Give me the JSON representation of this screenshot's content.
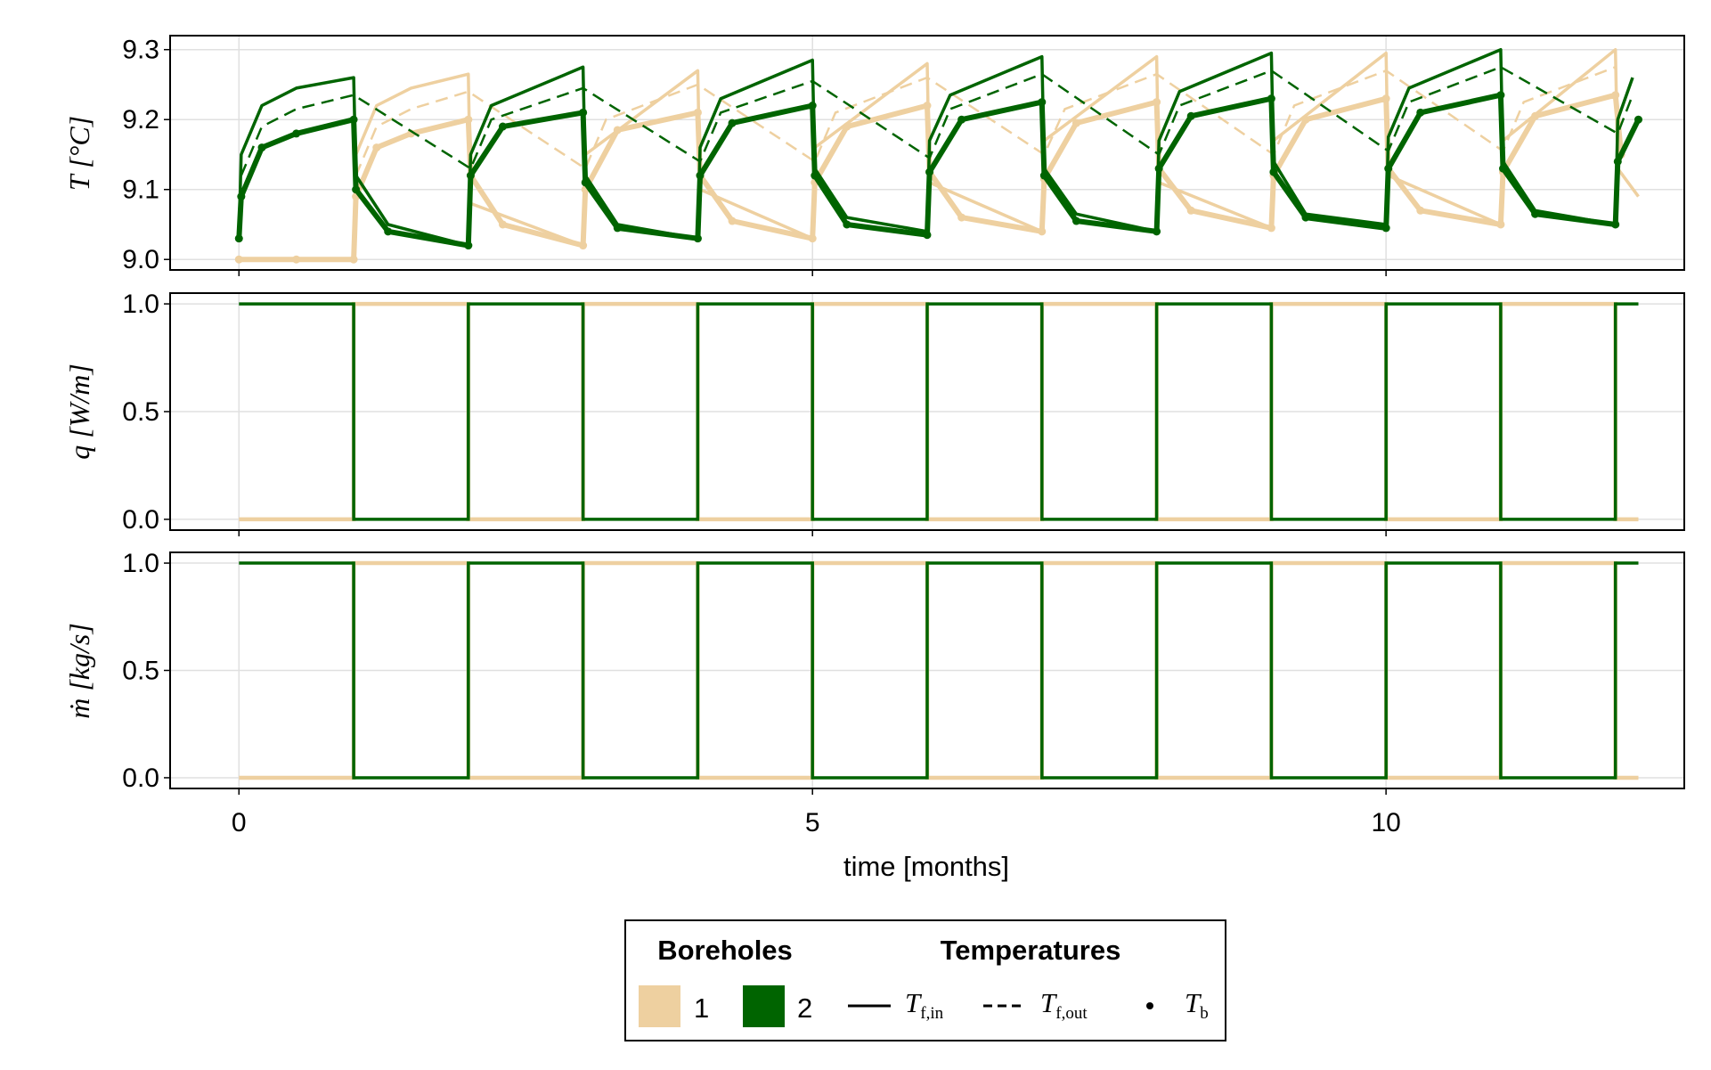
{
  "colors": {
    "borehole1": "#eed0a0",
    "borehole2": "#006400",
    "grid": "#e0e0e0",
    "axis": "#000000"
  },
  "chart_data": {
    "type": "line",
    "xlabel": "time [months]",
    "x_ticks": [
      "0",
      "5",
      "10"
    ],
    "xlim": [
      -0.6,
      12.6
    ],
    "panels": [
      {
        "id": "temperature",
        "ylabel": "T [°C]",
        "ylim": [
          8.985,
          9.32
        ],
        "y_ticks": [
          "9.0",
          "9.1",
          "9.2",
          "9.3"
        ],
        "y_tick_values": [
          9.0,
          9.1,
          9.2,
          9.3
        ],
        "series": [
          {
            "name": "T_f,in",
            "borehole": "1",
            "style": "solid",
            "x": [
              0,
              1,
              1.02,
              1.2,
              1.5,
              2.0,
              2.02,
              3.0,
              3.02,
              4.0,
              4.02,
              5.0,
              5.02,
              6.0,
              6.02,
              7.0,
              7.02,
              8.0,
              8.02,
              9.0,
              9.02,
              10.0,
              10.02,
              11.0,
              11.02,
              12.0,
              12.02,
              12.2
            ],
            "y": [
              9.0,
              9.0,
              9.15,
              9.22,
              9.245,
              9.265,
              9.08,
              9.02,
              9.15,
              9.27,
              9.1,
              9.03,
              9.16,
              9.28,
              9.11,
              9.04,
              9.17,
              9.29,
              9.11,
              9.045,
              9.17,
              9.295,
              9.12,
              9.05,
              9.17,
              9.3,
              9.13,
              9.09
            ]
          },
          {
            "name": "T_f,out",
            "borehole": "1",
            "style": "dashed",
            "x": [
              1.02,
              1.2,
              1.5,
              2.0,
              3.02,
              3.2,
              4.0,
              5.02,
              5.2,
              6.0,
              7.02,
              7.2,
              8.0,
              9.02,
              9.2,
              10.0,
              11.02,
              11.2,
              12.0
            ],
            "y": [
              9.12,
              9.19,
              9.215,
              9.24,
              9.13,
              9.2,
              9.25,
              9.14,
              9.21,
              9.26,
              9.15,
              9.215,
              9.265,
              9.15,
              9.22,
              9.27,
              9.155,
              9.225,
              9.275
            ]
          },
          {
            "name": "T_b",
            "borehole": "1",
            "style": "dots",
            "x": [
              0,
              0.5,
              1.0,
              1.02,
              1.2,
              1.5,
              2.0,
              2.02,
              2.3,
              3.0,
              3.02,
              3.3,
              4.0,
              4.02,
              4.3,
              5.0,
              5.02,
              5.3,
              6.0,
              6.02,
              6.3,
              7.0,
              7.02,
              7.3,
              8.0,
              8.02,
              8.3,
              9.0,
              9.02,
              9.3,
              10.0,
              10.02,
              10.3,
              11.0,
              11.02,
              11.3,
              12.0,
              12.05
            ],
            "y": [
              9.0,
              9.0,
              9.0,
              9.09,
              9.16,
              9.18,
              9.2,
              9.12,
              9.05,
              9.02,
              9.1,
              9.185,
              9.21,
              9.12,
              9.055,
              9.03,
              9.11,
              9.19,
              9.22,
              9.125,
              9.06,
              9.04,
              9.115,
              9.195,
              9.225,
              9.13,
              9.07,
              9.045,
              9.12,
              9.2,
              9.23,
              9.13,
              9.07,
              9.05,
              9.125,
              9.205,
              9.235,
              9.15
            ]
          },
          {
            "name": "T_f,in",
            "borehole": "2",
            "style": "solid",
            "x": [
              0,
              0.02,
              0.2,
              0.5,
              1.0,
              1.02,
              1.3,
              2.0,
              2.02,
              2.2,
              3.0,
              3.02,
              3.3,
              4.0,
              4.02,
              4.2,
              5.0,
              5.02,
              5.3,
              6.0,
              6.02,
              6.2,
              7.0,
              7.02,
              7.3,
              8.0,
              8.02,
              8.2,
              9.0,
              9.02,
              9.3,
              10.0,
              10.02,
              10.2,
              11.0,
              11.02,
              11.3,
              12.0,
              12.02,
              12.15
            ],
            "y": [
              9.03,
              9.15,
              9.22,
              9.245,
              9.26,
              9.12,
              9.05,
              9.02,
              9.15,
              9.22,
              9.275,
              9.12,
              9.05,
              9.03,
              9.16,
              9.23,
              9.285,
              9.13,
              9.06,
              9.04,
              9.17,
              9.235,
              9.29,
              9.13,
              9.065,
              9.04,
              9.17,
              9.24,
              9.295,
              9.14,
              9.065,
              9.05,
              9.175,
              9.245,
              9.3,
              9.14,
              9.07,
              9.05,
              9.2,
              9.26
            ]
          },
          {
            "name": "T_f,out",
            "borehole": "2",
            "style": "dashed",
            "x": [
              0.02,
              0.2,
              0.5,
              1.0,
              2.02,
              2.2,
              3.0,
              4.02,
              4.2,
              5.0,
              6.02,
              6.2,
              7.0,
              8.02,
              8.2,
              9.0,
              10.02,
              10.2,
              11.0,
              12.02,
              12.15
            ],
            "y": [
              9.12,
              9.19,
              9.215,
              9.235,
              9.13,
              9.2,
              9.245,
              9.14,
              9.21,
              9.255,
              9.145,
              9.215,
              9.265,
              9.15,
              9.22,
              9.27,
              9.155,
              9.225,
              9.275,
              9.18,
              9.235
            ]
          },
          {
            "name": "T_b",
            "borehole": "2",
            "style": "dots",
            "x": [
              0,
              0.02,
              0.2,
              0.5,
              1.0,
              1.02,
              1.3,
              2.0,
              2.02,
              2.3,
              3.0,
              3.02,
              3.3,
              4.0,
              4.02,
              4.3,
              5.0,
              5.02,
              5.3,
              6.0,
              6.02,
              6.3,
              7.0,
              7.02,
              7.3,
              8.0,
              8.02,
              8.3,
              9.0,
              9.02,
              9.3,
              10.0,
              10.02,
              10.3,
              11.0,
              11.02,
              11.3,
              12.0,
              12.02,
              12.2
            ],
            "y": [
              9.03,
              9.09,
              9.16,
              9.18,
              9.2,
              9.1,
              9.04,
              9.02,
              9.12,
              9.19,
              9.21,
              9.11,
              9.045,
              9.03,
              9.12,
              9.195,
              9.22,
              9.12,
              9.05,
              9.035,
              9.125,
              9.2,
              9.225,
              9.12,
              9.055,
              9.04,
              9.13,
              9.205,
              9.23,
              9.125,
              9.06,
              9.045,
              9.13,
              9.21,
              9.235,
              9.13,
              9.065,
              9.05,
              9.14,
              9.2
            ]
          }
        ]
      },
      {
        "id": "heat-rate",
        "ylabel": "q [W/m]",
        "ylim": [
          -0.05,
          1.05
        ],
        "y_ticks": [
          "0.0",
          "0.5",
          "1.0"
        ],
        "y_tick_values": [
          0,
          0.5,
          1.0
        ],
        "series": [
          {
            "borehole": "1",
            "style": "step",
            "x": [
              0,
              1,
              1,
              2,
              2,
              3,
              3,
              4,
              4,
              5,
              5,
              6,
              6,
              7,
              7,
              8,
              8,
              9,
              9,
              10,
              10,
              11,
              11,
              12,
              12,
              12.2
            ],
            "y": [
              0,
              0,
              1,
              1,
              0,
              0,
              1,
              1,
              0,
              0,
              1,
              1,
              0,
              0,
              1,
              1,
              0,
              0,
              1,
              1,
              0,
              0,
              1,
              1,
              0,
              0
            ]
          },
          {
            "borehole": "2",
            "style": "step",
            "x": [
              0,
              1,
              1,
              2,
              2,
              3,
              3,
              4,
              4,
              5,
              5,
              6,
              6,
              7,
              7,
              8,
              8,
              9,
              9,
              10,
              10,
              11,
              11,
              12,
              12,
              12.2
            ],
            "y": [
              1,
              1,
              0,
              0,
              1,
              1,
              0,
              0,
              1,
              1,
              0,
              0,
              1,
              1,
              0,
              0,
              1,
              1,
              0,
              0,
              1,
              1,
              0,
              0,
              1,
              1
            ]
          }
        ]
      },
      {
        "id": "mass-flow",
        "ylabel": "ṁ [kg/s]",
        "ylim": [
          -0.05,
          1.05
        ],
        "y_ticks": [
          "0.0",
          "0.5",
          "1.0"
        ],
        "y_tick_values": [
          0,
          0.5,
          1.0
        ],
        "series": [
          {
            "borehole": "1",
            "style": "step",
            "x": [
              0,
              1,
              1,
              2,
              2,
              3,
              3,
              4,
              4,
              5,
              5,
              6,
              6,
              7,
              7,
              8,
              8,
              9,
              9,
              10,
              10,
              11,
              11,
              12,
              12,
              12.2
            ],
            "y": [
              0,
              0,
              1,
              1,
              0,
              0,
              1,
              1,
              0,
              0,
              1,
              1,
              0,
              0,
              1,
              1,
              0,
              0,
              1,
              1,
              0,
              0,
              1,
              1,
              0,
              0
            ]
          },
          {
            "borehole": "2",
            "style": "step",
            "x": [
              0,
              1,
              1,
              2,
              2,
              3,
              3,
              4,
              4,
              5,
              5,
              6,
              6,
              7,
              7,
              8,
              8,
              9,
              9,
              10,
              10,
              11,
              11,
              12,
              12,
              12.2
            ],
            "y": [
              1,
              1,
              0,
              0,
              1,
              1,
              0,
              0,
              1,
              1,
              0,
              0,
              1,
              1,
              0,
              0,
              1,
              1,
              0,
              0,
              1,
              1,
              0,
              0,
              1,
              1
            ]
          }
        ]
      }
    ],
    "legend": {
      "position": "bottom-center",
      "boreholes_title": "Boreholes",
      "temperatures_title": "Temperatures",
      "boreholes": [
        "1",
        "2"
      ],
      "temperatures": [
        {
          "symbol": "T",
          "sub": "f,in",
          "style": "solid"
        },
        {
          "symbol": "T",
          "sub": "f,out",
          "style": "dashed"
        },
        {
          "symbol": "T",
          "sub": "b",
          "style": "dots"
        }
      ]
    }
  }
}
